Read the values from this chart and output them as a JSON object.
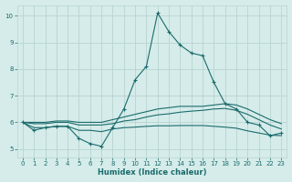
{
  "xlabel": "Humidex (Indice chaleur)",
  "xlim": [
    -0.5,
    23.5
  ],
  "ylim": [
    4.7,
    10.4
  ],
  "bg_color": "#d5ecea",
  "grid_color": "#b8d4d0",
  "line_color": "#1a6b6b",
  "xticks": [
    0,
    1,
    2,
    3,
    4,
    5,
    6,
    7,
    8,
    9,
    10,
    11,
    12,
    13,
    14,
    15,
    16,
    17,
    18,
    19,
    20,
    21,
    22,
    23
  ],
  "yticks": [
    5,
    6,
    7,
    8,
    9,
    10
  ],
  "lines": [
    {
      "x": [
        0,
        1,
        2,
        3,
        4,
        5,
        6,
        7,
        8,
        9,
        10,
        11,
        12,
        13,
        14,
        15,
        16,
        17,
        18,
        19,
        20,
        21,
        22,
        23
      ],
      "y": [
        6.0,
        5.7,
        5.8,
        5.85,
        5.85,
        5.4,
        5.2,
        5.1,
        5.8,
        6.5,
        7.6,
        8.1,
        10.1,
        9.4,
        8.9,
        8.6,
        8.5,
        7.5,
        6.7,
        6.5,
        6.0,
        5.9,
        5.5,
        5.6
      ],
      "marker": "+"
    },
    {
      "x": [
        0,
        1,
        2,
        3,
        4,
        5,
        6,
        7,
        8,
        9,
        10,
        11,
        12,
        13,
        14,
        15,
        16,
        17,
        18,
        19,
        20,
        21,
        22,
        23
      ],
      "y": [
        6.0,
        6.0,
        6.0,
        6.05,
        6.05,
        6.0,
        6.0,
        6.0,
        6.1,
        6.2,
        6.3,
        6.4,
        6.5,
        6.55,
        6.6,
        6.6,
        6.6,
        6.65,
        6.7,
        6.65,
        6.5,
        6.3,
        6.1,
        5.95
      ],
      "marker": null
    },
    {
      "x": [
        0,
        1,
        2,
        3,
        4,
        5,
        6,
        7,
        8,
        9,
        10,
        11,
        12,
        13,
        14,
        15,
        16,
        17,
        18,
        19,
        20,
        21,
        22,
        23
      ],
      "y": [
        6.0,
        5.95,
        5.95,
        6.0,
        6.0,
        5.9,
        5.9,
        5.9,
        5.95,
        6.05,
        6.1,
        6.2,
        6.28,
        6.32,
        6.38,
        6.42,
        6.45,
        6.5,
        6.52,
        6.45,
        6.3,
        6.1,
        5.9,
        5.75
      ],
      "marker": null
    },
    {
      "x": [
        0,
        1,
        2,
        3,
        4,
        5,
        6,
        7,
        8,
        9,
        10,
        11,
        12,
        13,
        14,
        15,
        16,
        17,
        18,
        19,
        20,
        21,
        22,
        23
      ],
      "y": [
        6.0,
        5.8,
        5.8,
        5.85,
        5.85,
        5.7,
        5.7,
        5.65,
        5.75,
        5.8,
        5.82,
        5.85,
        5.87,
        5.87,
        5.88,
        5.88,
        5.88,
        5.85,
        5.82,
        5.78,
        5.68,
        5.6,
        5.52,
        5.5
      ],
      "marker": null
    }
  ]
}
